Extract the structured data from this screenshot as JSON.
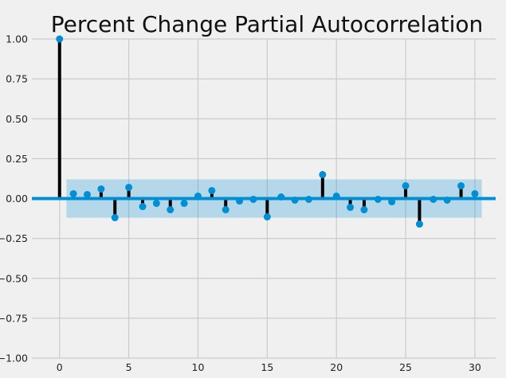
{
  "chart_data": {
    "type": "stem",
    "title": "Percent Change Partial Autocorrelation",
    "xlabel": "",
    "ylabel": "",
    "xlim": [
      -2,
      31.5
    ],
    "ylim": [
      -1.0,
      1.0
    ],
    "xticks": [
      0,
      5,
      10,
      15,
      20,
      25,
      30
    ],
    "xtick_labels": [
      "0",
      "5",
      "10",
      "15",
      "20",
      "25",
      "30"
    ],
    "yticks": [
      1.0,
      0.75,
      0.5,
      0.25,
      0.0,
      -0.25,
      -0.5,
      -0.75,
      -1.0
    ],
    "ytick_labels": [
      "1.00",
      "0.75",
      "0.50",
      "0.25",
      "0.00",
      "−0.25",
      "−0.50",
      "−0.75",
      "−1.00"
    ],
    "grid": true,
    "lags": [
      0,
      1,
      2,
      3,
      4,
      5,
      6,
      7,
      8,
      9,
      10,
      11,
      12,
      13,
      14,
      15,
      16,
      17,
      18,
      19,
      20,
      21,
      22,
      23,
      24,
      25,
      26,
      27,
      28,
      29,
      30
    ],
    "values": [
      1.0,
      0.03,
      0.025,
      0.06,
      -0.12,
      0.07,
      -0.05,
      -0.03,
      -0.07,
      -0.03,
      0.015,
      0.05,
      -0.07,
      -0.015,
      -0.005,
      -0.115,
      0.01,
      -0.01,
      -0.005,
      0.15,
      0.015,
      -0.055,
      -0.07,
      -0.005,
      -0.02,
      0.08,
      -0.16,
      -0.005,
      -0.01,
      0.08,
      0.03
    ],
    "confidence_band": {
      "x_range": [
        0.5,
        30.5
      ],
      "y_range": [
        -0.12,
        0.12
      ]
    },
    "colors": {
      "background": "#f0f0f0",
      "grid": "#cbcbcb",
      "marker": "#008fd5",
      "stem": "#000000",
      "baseline": "#008fd5",
      "band": "#008fd5"
    }
  }
}
